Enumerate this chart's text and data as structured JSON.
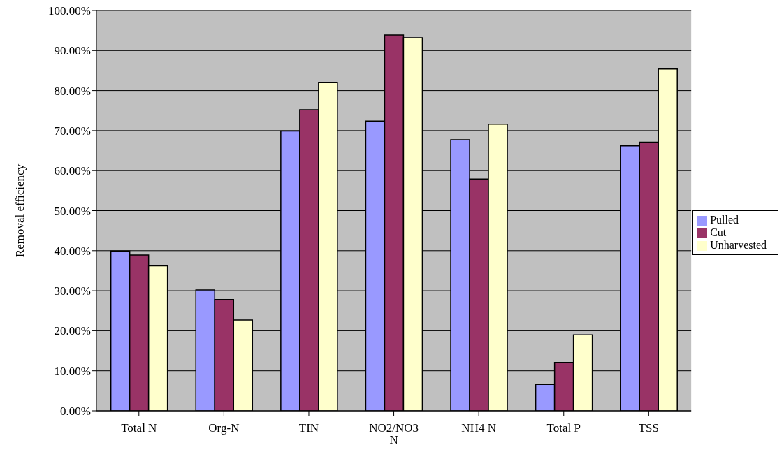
{
  "chart_data": {
    "type": "bar",
    "ylabel": "Removal efficiency",
    "categories": [
      "Total N",
      "Org-N",
      "TIN",
      "NO2/NO3 N",
      "NH4 N",
      "Total P",
      "TSS"
    ],
    "series": [
      {
        "name": "Pulled",
        "color": "#9999ff",
        "values": [
          39.9,
          30.2,
          69.9,
          72.4,
          67.7,
          6.6,
          66.2
        ]
      },
      {
        "name": "Cut",
        "color": "#993366",
        "values": [
          38.9,
          27.8,
          75.2,
          93.9,
          57.9,
          12.1,
          67.1
        ]
      },
      {
        "name": "Unharvested",
        "color": "#ffffcc",
        "values": [
          36.2,
          22.7,
          82.0,
          93.2,
          71.6,
          19.0,
          85.4
        ]
      }
    ],
    "ylim": [
      0,
      100
    ],
    "yticks": [
      {
        "value": 0,
        "label": "0.00%"
      },
      {
        "value": 10,
        "label": "10.00%"
      },
      {
        "value": 20,
        "label": "20.00%"
      },
      {
        "value": 30,
        "label": "30.00%"
      },
      {
        "value": 40,
        "label": "40.00%"
      },
      {
        "value": 50,
        "label": "50.00%"
      },
      {
        "value": 60,
        "label": "60.00%"
      },
      {
        "value": 70,
        "label": "70.00%"
      },
      {
        "value": 80,
        "label": "80.00%"
      },
      {
        "value": 90,
        "label": "90.00%"
      },
      {
        "value": 100,
        "label": "100.00%"
      }
    ],
    "grid": "y",
    "legend": "right"
  }
}
